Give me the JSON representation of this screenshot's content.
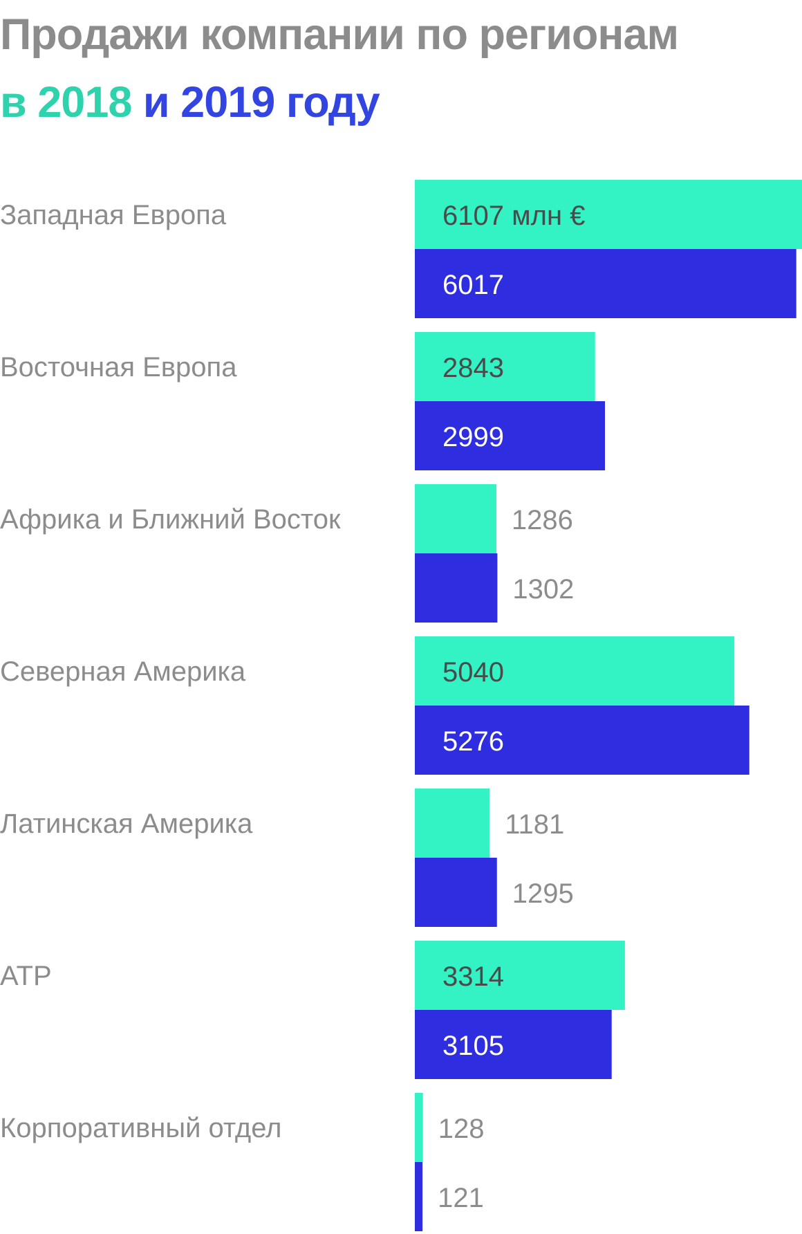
{
  "chart_data": {
    "type": "bar",
    "orientation": "horizontal",
    "title": "Продажи компании по регионам",
    "subtitle_parts": [
      "в",
      "2018",
      "и",
      "2019",
      "году"
    ],
    "unit": "млн €",
    "categories": [
      "Западная Европа",
      "Восточная Европа",
      "Африка и Ближний Восток",
      "Северная Америка",
      "Латинская Америка",
      "АТР",
      "Корпоративный отдел"
    ],
    "series": [
      {
        "name": "2018",
        "color": "#33f2c4",
        "label_color": "#4a4a4a",
        "values": [
          6107,
          2843,
          1286,
          5040,
          1181,
          3314,
          128
        ]
      },
      {
        "name": "2019",
        "color": "#2e2ee0",
        "label_color": "#ffffff",
        "values": [
          6017,
          2999,
          1302,
          5276,
          1295,
          3105,
          121
        ]
      }
    ],
    "xlim": [
      0,
      6107
    ],
    "grid": false,
    "legend": "in subtitle"
  }
}
